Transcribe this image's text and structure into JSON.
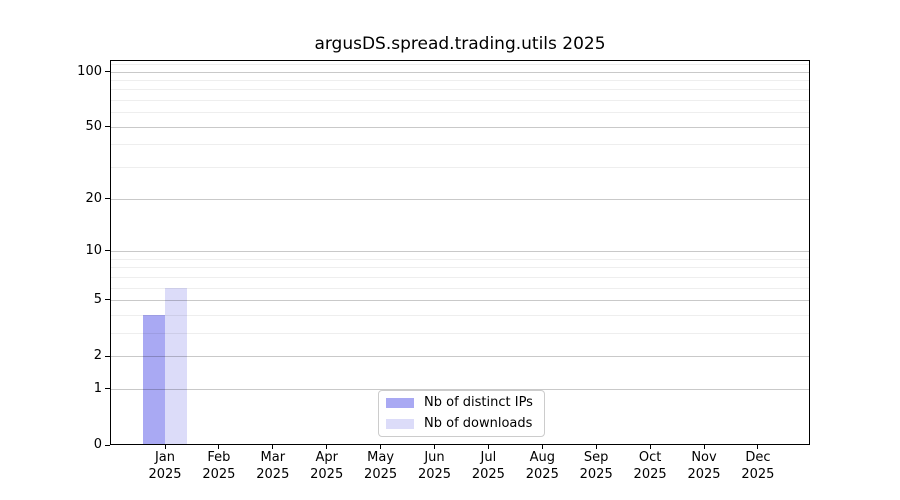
{
  "chart_data": {
    "type": "bar",
    "title": "argusDS.spread.trading.utils 2025",
    "categories": [
      "Jan",
      "Feb",
      "Mar",
      "Apr",
      "May",
      "Jun",
      "Jul",
      "Aug",
      "Sep",
      "Oct",
      "Nov",
      "Dec"
    ],
    "category_sublabel": "2025",
    "series": [
      {
        "name": "Nb of distinct IPs",
        "color": "#a9a9f3",
        "values": [
          4,
          0,
          0,
          0,
          0,
          0,
          0,
          0,
          0,
          0,
          0,
          0
        ]
      },
      {
        "name": "Nb of downloads",
        "color": "#dcdcf9",
        "values": [
          6,
          0,
          0,
          0,
          0,
          0,
          0,
          0,
          0,
          0,
          0,
          0
        ]
      }
    ],
    "yscale": "log1p",
    "ylim": [
      0,
      114
    ],
    "y_major_ticks": [
      0,
      1,
      2,
      5,
      10,
      20,
      50,
      100
    ],
    "y_minor_gridlines": [
      3,
      4,
      6,
      7,
      8,
      9,
      30,
      40,
      60,
      70,
      80,
      90,
      110
    ],
    "xlabel": "",
    "ylabel": "",
    "grid": {
      "major_color": "rgba(0,0,0,0.21)",
      "minor_color": "rgba(0,0,0,0.065)"
    },
    "legend": {
      "position": "lower center"
    }
  }
}
